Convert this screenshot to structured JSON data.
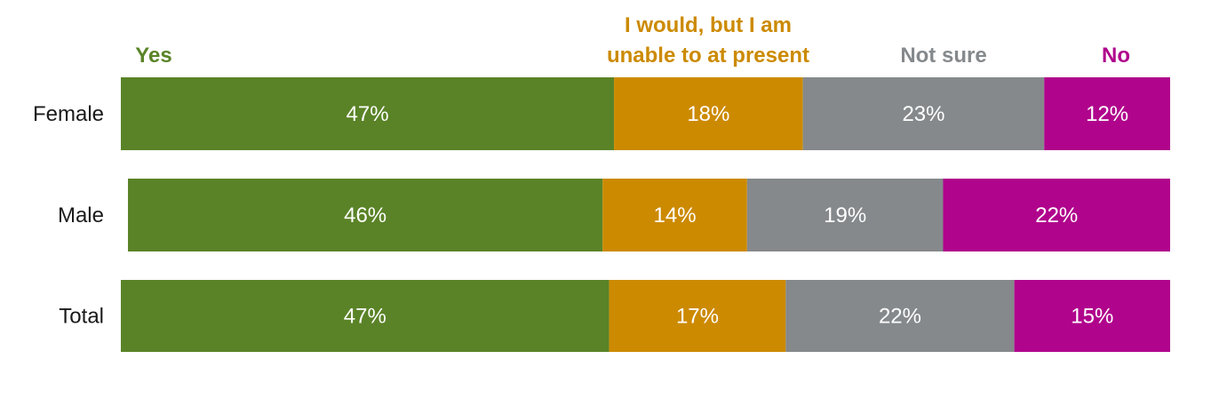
{
  "chart_data": {
    "type": "bar",
    "orientation": "horizontal",
    "stacked": true,
    "normalized": true,
    "categories": [
      "Female",
      "Male",
      "Total"
    ],
    "series": [
      {
        "name": "Yes",
        "color": "#5a8327",
        "values": [
          47,
          46,
          47
        ],
        "labels": [
          "47%",
          "46%",
          "47%"
        ]
      },
      {
        "name": "I would, but I am unable to at present",
        "legend_lines": [
          "I would, but I am",
          "unable to at present"
        ],
        "color": "#cc8a00",
        "values": [
          18,
          14,
          17
        ],
        "labels": [
          "18%",
          "14%",
          "17%"
        ]
      },
      {
        "name": "Not sure",
        "color": "#85898c",
        "values": [
          23,
          19,
          22
        ],
        "labels": [
          "23%",
          "19%",
          "22%"
        ]
      },
      {
        "name": "No",
        "color": "#b0048c",
        "values": [
          12,
          22,
          15
        ],
        "labels": [
          "12%",
          "22%",
          "15%"
        ]
      }
    ],
    "legend_position": "top",
    "grid": false,
    "xlim": [
      0,
      100
    ]
  }
}
